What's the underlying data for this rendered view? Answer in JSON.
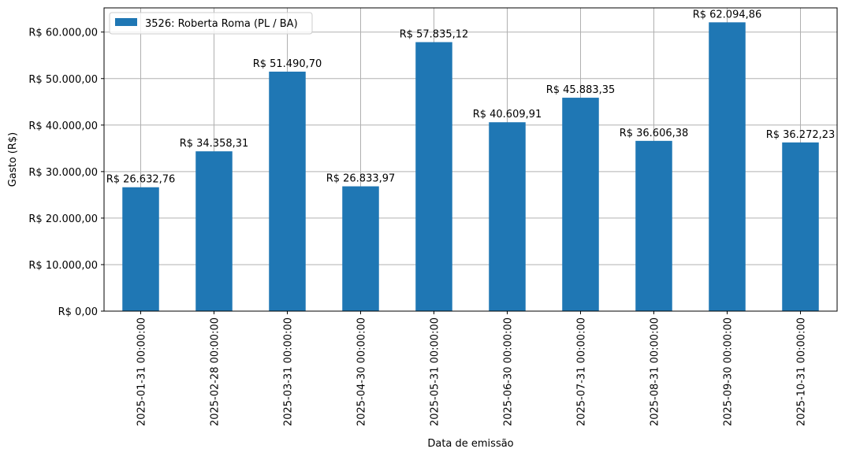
{
  "chart_data": {
    "type": "bar",
    "title": "",
    "xlabel": "Data de emissão",
    "ylabel": "Gasto (R$)",
    "categories": [
      "2025-01-31 00:00:00",
      "2025-02-28 00:00:00",
      "2025-03-31 00:00:00",
      "2025-04-30 00:00:00",
      "2025-05-31 00:00:00",
      "2025-06-30 00:00:00",
      "2025-07-31 00:00:00",
      "2025-08-31 00:00:00",
      "2025-09-30 00:00:00",
      "2025-10-31 00:00:00"
    ],
    "series": [
      {
        "name": "3526: Roberta Roma (PL / BA)",
        "color": "#1f77b4",
        "values": [
          26632.76,
          34358.31,
          51490.7,
          26833.97,
          57835.12,
          40609.91,
          45883.35,
          36606.38,
          62094.86,
          36272.23
        ]
      }
    ],
    "data_labels": [
      "R$ 26.632,76",
      "R$ 34.358,31",
      "R$ 51.490,70",
      "R$ 26.833,97",
      "R$ 57.835,12",
      "R$ 40.609,91",
      "R$ 45.883,35",
      "R$ 36.606,38",
      "R$ 62.094,86",
      "R$ 36.272,23"
    ],
    "yticks": [
      0,
      10000,
      20000,
      30000,
      40000,
      50000,
      60000
    ],
    "ytick_labels": [
      "R$ 0,00",
      "R$ 10.000,00",
      "R$ 20.000,00",
      "R$ 30.000,00",
      "R$ 40.000,00",
      "R$ 50.000,00",
      "R$ 60.000,00"
    ],
    "ylim": [
      0,
      65200
    ],
    "grid": true,
    "legend_position": "top-left"
  }
}
